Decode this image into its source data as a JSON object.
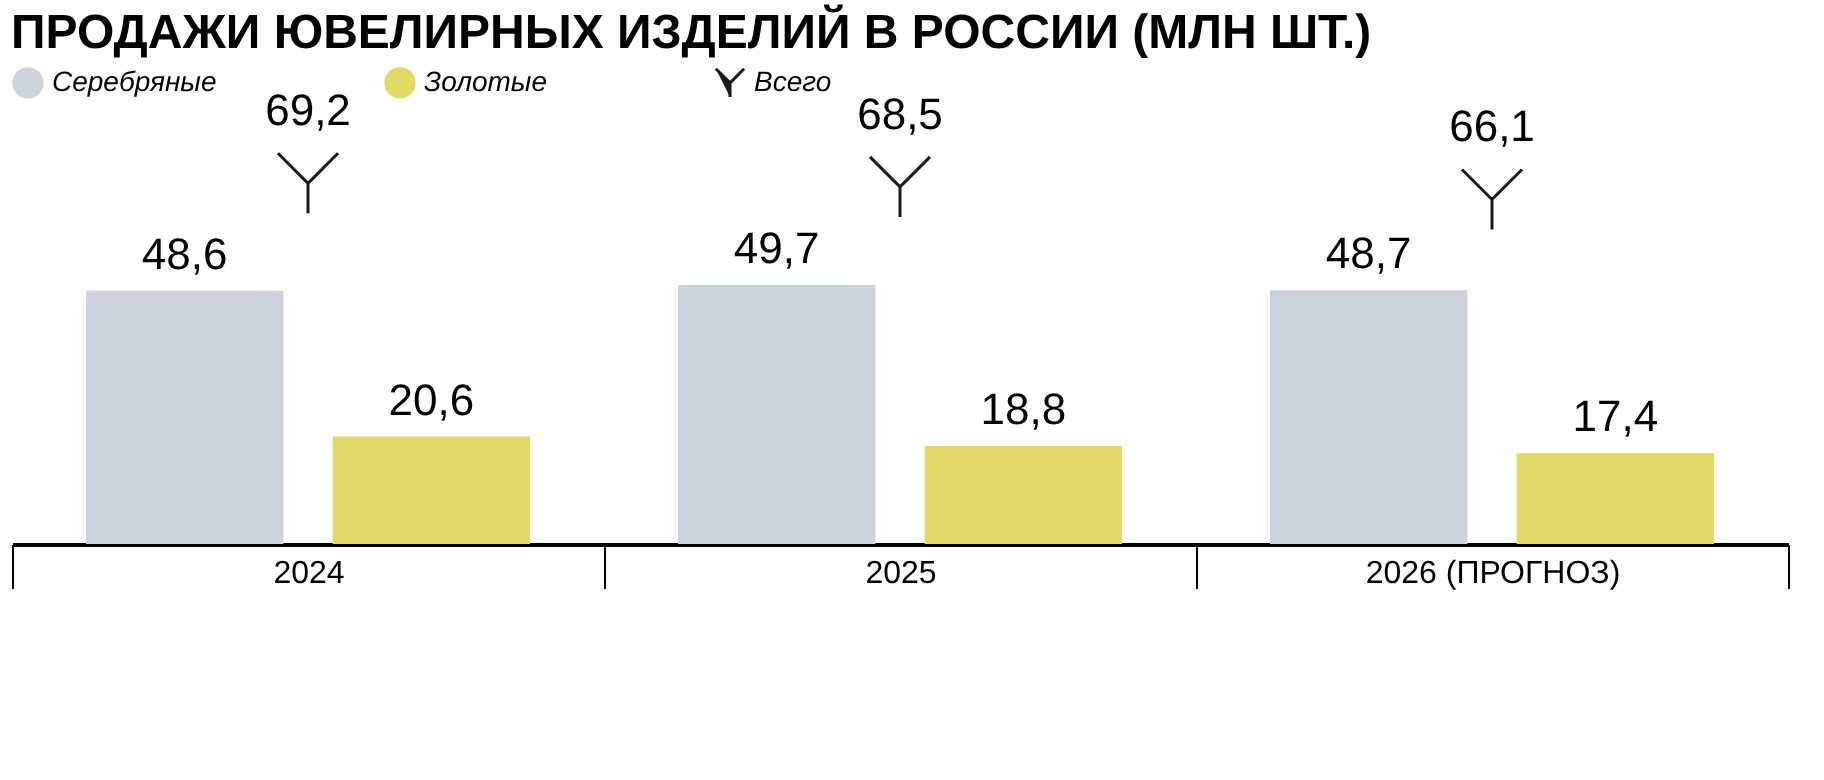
{
  "chart_data": {
    "type": "bar",
    "title": "ПРОДАЖИ ЮВЕЛИРНЫХ ИЗДЕЛИЙ В РОССИИ (МЛН ШТ.)",
    "categories": [
      "2024",
      "2025",
      "2026 (ПРОГНОЗ)"
    ],
    "series": [
      {
        "name": "Серебряные",
        "color": "#cdd3dc",
        "values": [
          48.6,
          49.7,
          48.7
        ],
        "value_labels": [
          "48,6",
          "49,7",
          "48,7"
        ]
      },
      {
        "name": "Золотые",
        "color": "#e2d964",
        "values": [
          20.6,
          18.8,
          17.4
        ],
        "value_labels": [
          "20,6",
          "18,8",
          "17,4"
        ]
      },
      {
        "name": "Всего",
        "type": "scatter",
        "color": "#1a1a1a",
        "values": [
          69.2,
          68.5,
          66.1
        ],
        "value_labels": [
          "69,2",
          "68,5",
          "66,1"
        ]
      }
    ],
    "legend": "top"
  }
}
